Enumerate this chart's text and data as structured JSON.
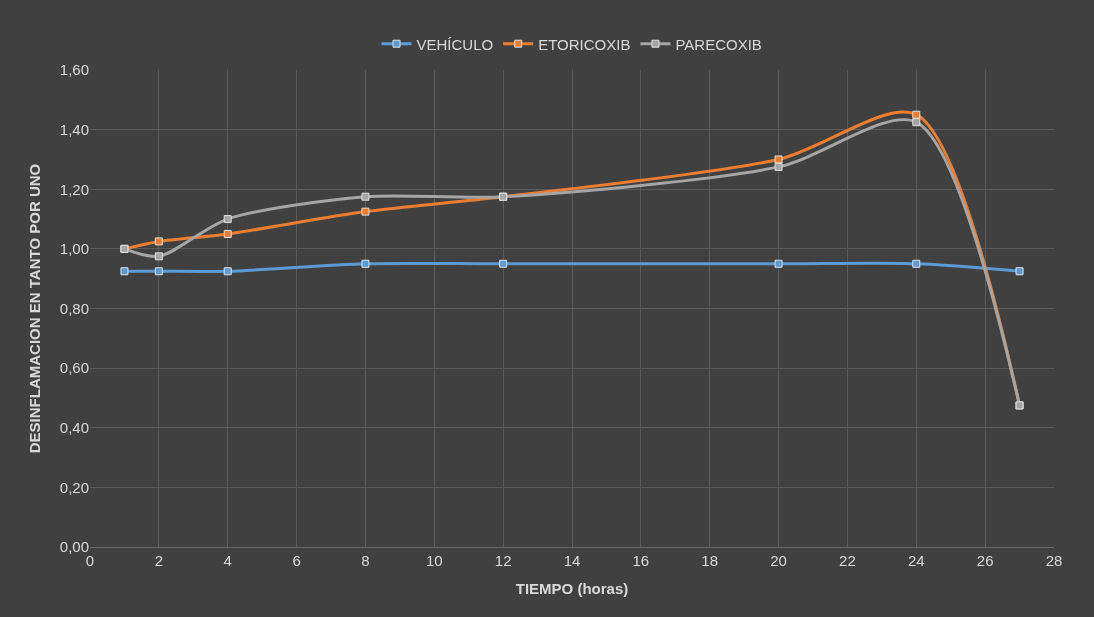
{
  "chart_data": {
    "type": "line",
    "xlabel": "TIEMPO (horas)",
    "ylabel": "DESINFLAMACION EN TANTO POR UNO",
    "x": [
      1,
      2,
      4,
      8,
      12,
      20,
      24,
      27
    ],
    "series": [
      {
        "name": "VEHÍCULO",
        "color": "#5b9bd5",
        "values": [
          0.925,
          0.925,
          0.925,
          0.95,
          0.95,
          0.95,
          0.95,
          0.925
        ]
      },
      {
        "name": "ETORICOXIB",
        "color": "#ed7d31",
        "values": [
          1.0,
          1.025,
          1.05,
          1.125,
          1.175,
          1.3,
          1.45,
          0.475
        ]
      },
      {
        "name": "PARECOXIB",
        "color": "#a5a5a5",
        "values": [
          1.0,
          0.975,
          1.1,
          1.175,
          1.175,
          1.275,
          1.425,
          0.475
        ]
      }
    ],
    "xlim": [
      0,
      28
    ],
    "xticks": [
      0,
      2,
      4,
      6,
      8,
      10,
      12,
      14,
      16,
      18,
      20,
      22,
      24,
      26,
      28
    ],
    "ylim": [
      0,
      1.6
    ],
    "yticks": [
      {
        "value": 0,
        "label": "0,00"
      },
      {
        "value": 0.2,
        "label": "0,20"
      },
      {
        "value": 0.4,
        "label": "0,40"
      },
      {
        "value": 0.6,
        "label": "0,60"
      },
      {
        "value": 0.8,
        "label": "0,80"
      },
      {
        "value": 1.0,
        "label": "1,00"
      },
      {
        "value": 1.2,
        "label": "1,20"
      },
      {
        "value": 1.4,
        "label": "1,40"
      },
      {
        "value": 1.6,
        "label": "1,60"
      }
    ],
    "grid": true,
    "legend": "top",
    "marker": "square",
    "line_style": "solid"
  }
}
